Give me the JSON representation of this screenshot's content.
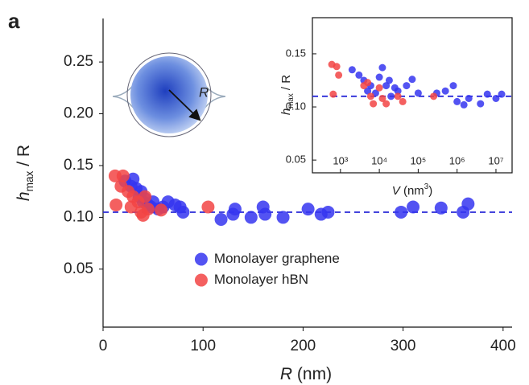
{
  "panel_label": "a",
  "illustration_label": "R",
  "chart_data": [
    {
      "type": "scatter",
      "xlabel": [
        "R",
        " (nm)"
      ],
      "ylabel": [
        "h",
        "max",
        " / R"
      ],
      "xlim": [
        0,
        409
      ],
      "ylim": [
        -0.006,
        0.292
      ],
      "xticks": [
        0,
        100,
        200,
        300,
        400
      ],
      "yticks": [
        0.05,
        {
          "value": 0.1,
          "label": "0.10"
        },
        0.15,
        {
          "value": 0.2,
          "label": "0.20"
        },
        0.25
      ],
      "hline": {
        "value": 0.105,
        "color": "#2a2ad8"
      },
      "legend": "lower center",
      "series": [
        {
          "name": "Monolayer graphene",
          "color": "#3535f0",
          "x": [
            22,
            28,
            30,
            33,
            36,
            38,
            40,
            42,
            45,
            48,
            50,
            55,
            60,
            65,
            72,
            77,
            80,
            118,
            130,
            132,
            148,
            160,
            162,
            180,
            205,
            218,
            225,
            298,
            310,
            338,
            360,
            365
          ],
          "values": [
            0.135,
            0.13,
            0.137,
            0.128,
            0.12,
            0.125,
            0.115,
            0.118,
            0.112,
            0.11,
            0.115,
            0.108,
            0.11,
            0.115,
            0.112,
            0.11,
            0.105,
            0.098,
            0.103,
            0.108,
            0.1,
            0.11,
            0.103,
            0.1,
            0.108,
            0.103,
            0.105,
            0.105,
            0.11,
            0.109,
            0.105,
            0.113
          ]
        },
        {
          "name": "Monolayer hBN",
          "color": "#f24444",
          "x": [
            12,
            13,
            18,
            20,
            25,
            28,
            30,
            35,
            38,
            40,
            42,
            45,
            58,
            105
          ],
          "values": [
            0.14,
            0.112,
            0.13,
            0.14,
            0.125,
            0.11,
            0.12,
            0.115,
            0.105,
            0.102,
            0.12,
            0.108,
            0.107,
            0.11
          ]
        }
      ]
    },
    {
      "type": "scatter",
      "xlabel": [
        "V",
        " (nm",
        "3",
        ")"
      ],
      "ylabel": [
        "h",
        "max",
        " / R"
      ],
      "xlog": true,
      "xlim": [
        190,
        26000000
      ],
      "ylim": [
        0.038,
        0.184
      ],
      "xticks": [
        {
          "value": 1000,
          "label": "10³"
        },
        {
          "value": 10000,
          "label": "10⁴"
        },
        {
          "value": 100000,
          "label": "10⁵"
        },
        {
          "value": 1000000,
          "label": "10⁶"
        },
        {
          "value": 10000000,
          "label": "10⁷"
        }
      ],
      "yticks": [
        0.05,
        {
          "value": 0.1,
          "label": "0.10"
        },
        0.15
      ],
      "hline": {
        "value": 0.11,
        "color": "#2a2ad8"
      },
      "legend": "none",
      "series": [
        {
          "name": "Monolayer graphene",
          "color": "#3535f0",
          "x": [
            2000,
            3000,
            4000,
            5000,
            6000,
            8000,
            10000,
            12000,
            15000,
            18000,
            20000,
            25000,
            30000,
            50000,
            70000,
            100000,
            300000,
            500000,
            800000,
            1000000,
            1500000,
            2000000,
            4000000,
            6000000,
            10000000,
            14000000
          ],
          "values": [
            0.135,
            0.13,
            0.125,
            0.115,
            0.12,
            0.113,
            0.128,
            0.137,
            0.12,
            0.125,
            0.11,
            0.118,
            0.115,
            0.12,
            0.126,
            0.113,
            0.113,
            0.115,
            0.12,
            0.105,
            0.102,
            0.108,
            0.103,
            0.112,
            0.108,
            0.112
          ]
        },
        {
          "name": "Monolayer hBN",
          "color": "#f24444",
          "x": [
            600,
            650,
            800,
            900,
            4000,
            5000,
            6000,
            7000,
            10000,
            12000,
            15000,
            30000,
            40000,
            250000
          ],
          "values": [
            0.14,
            0.112,
            0.138,
            0.13,
            0.12,
            0.123,
            0.11,
            0.103,
            0.118,
            0.108,
            0.103,
            0.11,
            0.105,
            0.11
          ]
        }
      ]
    }
  ]
}
